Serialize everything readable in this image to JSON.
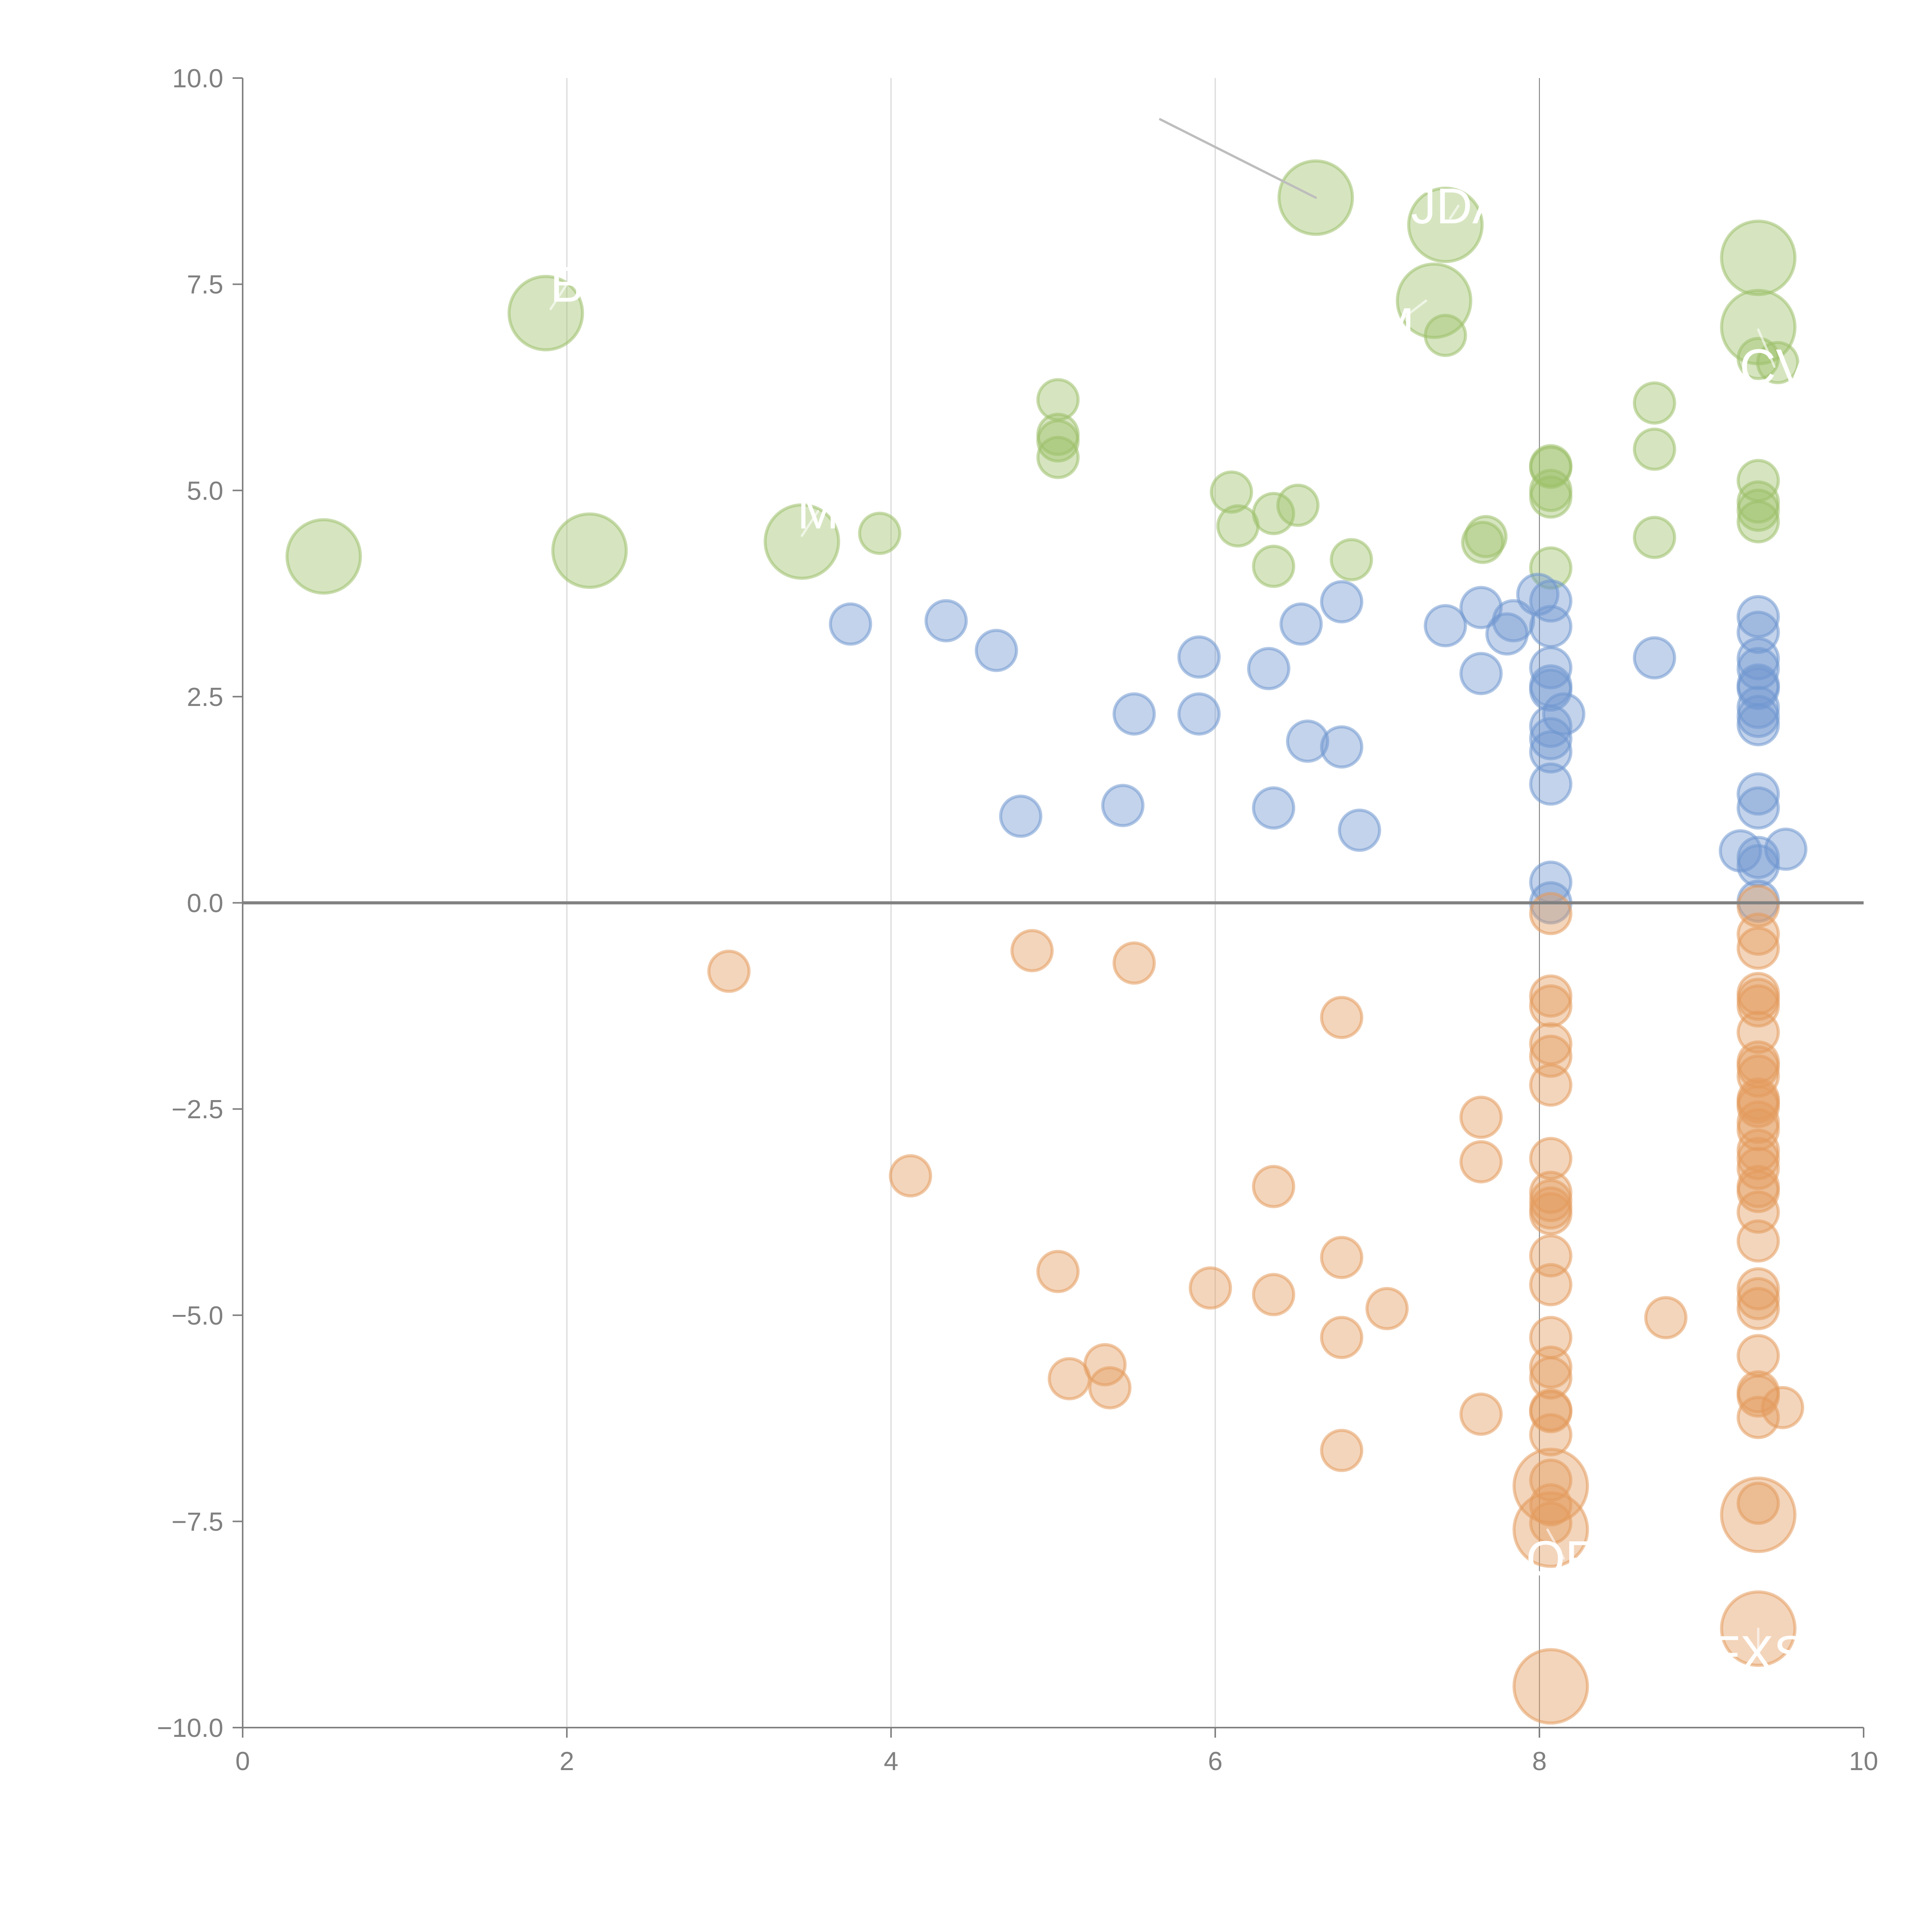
{
  "chart_data": {
    "type": "scatter",
    "title": "",
    "xlabel": "",
    "ylabel": "",
    "xlim": [
      0,
      10
    ],
    "ylim": [
      -10,
      10
    ],
    "x_ticks": [
      "0",
      "2",
      "4",
      "6",
      "8",
      "10"
    ],
    "y_ticks": [
      "10.0",
      "7.5",
      "5.0",
      "2.5",
      "0.0",
      "−2.5",
      "−5.0",
      "−7.5",
      "−10.0"
    ],
    "grid": "vertical",
    "zero_line": 0,
    "reference_vline": 8,
    "colors": {
      "up": "#9dc06a",
      "mid": "#6f97cf",
      "down": "#e39a5c"
    },
    "series": [
      {
        "name": "up",
        "points": [
          {
            "x": 0.5,
            "y": 4.2,
            "s": "L"
          },
          {
            "x": 1.87,
            "y": 7.15,
            "s": "L"
          },
          {
            "x": 2.14,
            "y": 4.27,
            "s": "L"
          },
          {
            "x": 3.45,
            "y": 4.38,
            "s": "L"
          },
          {
            "x": 3.93,
            "y": 4.48,
            "s": "S"
          },
          {
            "x": 5.03,
            "y": 6.1,
            "s": "S"
          },
          {
            "x": 5.03,
            "y": 5.68,
            "s": "S"
          },
          {
            "x": 5.03,
            "y": 5.6,
            "s": "S"
          },
          {
            "x": 5.03,
            "y": 5.4,
            "s": "S"
          },
          {
            "x": 6.1,
            "y": 4.98,
            "s": "S"
          },
          {
            "x": 6.14,
            "y": 4.57,
            "s": "S"
          },
          {
            "x": 6.36,
            "y": 4.72,
            "s": "S"
          },
          {
            "x": 6.36,
            "y": 4.08,
            "s": "S"
          },
          {
            "x": 6.51,
            "y": 4.82,
            "s": "S"
          },
          {
            "x": 6.62,
            "y": 8.55,
            "s": "L"
          },
          {
            "x": 6.84,
            "y": 4.16,
            "s": "S"
          },
          {
            "x": 7.35,
            "y": 7.3,
            "s": "L"
          },
          {
            "x": 7.42,
            "y": 8.22,
            "s": "L"
          },
          {
            "x": 7.42,
            "y": 6.88,
            "s": "S"
          },
          {
            "x": 7.65,
            "y": 4.37,
            "s": "S"
          },
          {
            "x": 7.67,
            "y": 4.44,
            "s": "S"
          },
          {
            "x": 8.07,
            "y": 5.3,
            "s": "S"
          },
          {
            "x": 8.07,
            "y": 5.28,
            "s": "S"
          },
          {
            "x": 8.07,
            "y": 5.0,
            "s": "S"
          },
          {
            "x": 8.07,
            "y": 4.92,
            "s": "S"
          },
          {
            "x": 8.07,
            "y": 4.06,
            "s": "S"
          },
          {
            "x": 8.71,
            "y": 6.06,
            "s": "S"
          },
          {
            "x": 8.71,
            "y": 5.5,
            "s": "S"
          },
          {
            "x": 8.71,
            "y": 4.43,
            "s": "S"
          },
          {
            "x": 9.35,
            "y": 7.82,
            "s": "L"
          },
          {
            "x": 9.35,
            "y": 6.98,
            "s": "L"
          },
          {
            "x": 9.35,
            "y": 6.6,
            "s": "S"
          },
          {
            "x": 9.47,
            "y": 6.55,
            "s": "S"
          },
          {
            "x": 9.35,
            "y": 5.12,
            "s": "S"
          },
          {
            "x": 9.35,
            "y": 4.86,
            "s": "S"
          },
          {
            "x": 9.35,
            "y": 4.76,
            "s": "S"
          },
          {
            "x": 9.35,
            "y": 4.62,
            "s": "S"
          }
        ]
      },
      {
        "name": "mid",
        "points": [
          {
            "x": 3.75,
            "y": 3.38
          },
          {
            "x": 4.34,
            "y": 3.42
          },
          {
            "x": 4.65,
            "y": 3.06
          },
          {
            "x": 4.8,
            "y": 1.05
          },
          {
            "x": 5.43,
            "y": 1.18
          },
          {
            "x": 5.5,
            "y": 2.29
          },
          {
            "x": 5.9,
            "y": 2.29
          },
          {
            "x": 5.9,
            "y": 2.98
          },
          {
            "x": 6.33,
            "y": 2.84
          },
          {
            "x": 6.36,
            "y": 1.15
          },
          {
            "x": 6.53,
            "y": 3.38
          },
          {
            "x": 6.57,
            "y": 1.96
          },
          {
            "x": 6.78,
            "y": 3.65
          },
          {
            "x": 6.78,
            "y": 1.89
          },
          {
            "x": 6.89,
            "y": 0.88
          },
          {
            "x": 7.42,
            "y": 3.36
          },
          {
            "x": 7.64,
            "y": 3.58
          },
          {
            "x": 7.64,
            "y": 2.78
          },
          {
            "x": 7.8,
            "y": 3.26
          },
          {
            "x": 7.84,
            "y": 3.42
          },
          {
            "x": 7.99,
            "y": 3.74
          },
          {
            "x": 8.07,
            "y": 3.66
          },
          {
            "x": 8.07,
            "y": 3.35
          },
          {
            "x": 8.07,
            "y": 2.85
          },
          {
            "x": 8.07,
            "y": 2.63
          },
          {
            "x": 8.07,
            "y": 2.58
          },
          {
            "x": 8.15,
            "y": 2.29
          },
          {
            "x": 8.07,
            "y": 2.14
          },
          {
            "x": 8.07,
            "y": 1.99
          },
          {
            "x": 8.07,
            "y": 1.83
          },
          {
            "x": 8.07,
            "y": 1.44
          },
          {
            "x": 8.07,
            "y": 0.25
          },
          {
            "x": 8.07,
            "y": 0.0
          },
          {
            "x": 8.71,
            "y": 2.97
          },
          {
            "x": 9.35,
            "y": 3.47
          },
          {
            "x": 9.35,
            "y": 3.28
          },
          {
            "x": 9.35,
            "y": 2.96
          },
          {
            "x": 9.35,
            "y": 2.84
          },
          {
            "x": 9.35,
            "y": 2.64
          },
          {
            "x": 9.35,
            "y": 2.6
          },
          {
            "x": 9.35,
            "y": 2.37
          },
          {
            "x": 9.35,
            "y": 2.26
          },
          {
            "x": 9.35,
            "y": 2.16
          },
          {
            "x": 9.35,
            "y": 1.32
          },
          {
            "x": 9.35,
            "y": 1.15
          },
          {
            "x": 9.24,
            "y": 0.63
          },
          {
            "x": 9.52,
            "y": 0.65
          },
          {
            "x": 9.35,
            "y": 0.55
          },
          {
            "x": 9.35,
            "y": 0.45
          },
          {
            "x": 9.35,
            "y": 0.02
          }
        ]
      },
      {
        "name": "down",
        "points": [
          {
            "x": 3.0,
            "y": -0.83,
            "s": "S"
          },
          {
            "x": 4.12,
            "y": -3.31,
            "s": "S"
          },
          {
            "x": 4.87,
            "y": -0.58,
            "s": "S"
          },
          {
            "x": 5.03,
            "y": -4.47,
            "s": "S"
          },
          {
            "x": 5.1,
            "y": -5.77,
            "s": "S"
          },
          {
            "x": 5.32,
            "y": -5.6,
            "s": "S"
          },
          {
            "x": 5.35,
            "y": -5.88,
            "s": "S"
          },
          {
            "x": 5.5,
            "y": -0.73,
            "s": "S"
          },
          {
            "x": 5.97,
            "y": -4.67,
            "s": "S"
          },
          {
            "x": 6.36,
            "y": -3.44,
            "s": "S"
          },
          {
            "x": 6.36,
            "y": -4.75,
            "s": "S"
          },
          {
            "x": 6.78,
            "y": -1.39,
            "s": "S"
          },
          {
            "x": 6.78,
            "y": -4.3,
            "s": "S"
          },
          {
            "x": 6.78,
            "y": -5.27,
            "s": "S"
          },
          {
            "x": 6.78,
            "y": -6.64,
            "s": "S"
          },
          {
            "x": 7.06,
            "y": -4.92,
            "s": "S"
          },
          {
            "x": 7.64,
            "y": -2.6,
            "s": "S"
          },
          {
            "x": 7.64,
            "y": -3.14,
            "s": "S"
          },
          {
            "x": 7.64,
            "y": -6.2,
            "s": "S"
          },
          {
            "x": 8.07,
            "y": -0.13,
            "s": "S"
          },
          {
            "x": 8.07,
            "y": -1.13,
            "s": "S"
          },
          {
            "x": 8.07,
            "y": -1.25,
            "s": "S"
          },
          {
            "x": 8.07,
            "y": -1.71,
            "s": "S"
          },
          {
            "x": 8.07,
            "y": -1.86,
            "s": "S"
          },
          {
            "x": 8.07,
            "y": -2.21,
            "s": "S"
          },
          {
            "x": 8.07,
            "y": -3.1,
            "s": "S"
          },
          {
            "x": 8.07,
            "y": -3.51,
            "s": "S"
          },
          {
            "x": 8.07,
            "y": -3.61,
            "s": "S"
          },
          {
            "x": 8.07,
            "y": -3.7,
            "s": "S"
          },
          {
            "x": 8.07,
            "y": -3.77,
            "s": "S"
          },
          {
            "x": 8.07,
            "y": -4.28,
            "s": "S"
          },
          {
            "x": 8.07,
            "y": -4.63,
            "s": "S"
          },
          {
            "x": 8.07,
            "y": -5.27,
            "s": "S"
          },
          {
            "x": 8.07,
            "y": -5.63,
            "s": "S"
          },
          {
            "x": 8.07,
            "y": -5.76,
            "s": "S"
          },
          {
            "x": 8.07,
            "y": -6.15,
            "s": "S"
          },
          {
            "x": 8.07,
            "y": -6.17,
            "s": "S"
          },
          {
            "x": 8.07,
            "y": -6.45,
            "s": "S"
          },
          {
            "x": 8.07,
            "y": -7.0,
            "s": "S"
          },
          {
            "x": 8.07,
            "y": -7.07,
            "s": "L"
          },
          {
            "x": 8.07,
            "y": -7.3,
            "s": "S"
          },
          {
            "x": 8.07,
            "y": -7.52,
            "s": "S"
          },
          {
            "x": 8.07,
            "y": -7.6,
            "s": "L"
          },
          {
            "x": 8.07,
            "y": -9.5,
            "s": "L"
          },
          {
            "x": 8.78,
            "y": -5.03,
            "s": "S"
          },
          {
            "x": 9.35,
            "y": -0.04,
            "s": "S"
          },
          {
            "x": 9.35,
            "y": -0.38,
            "s": "S"
          },
          {
            "x": 9.35,
            "y": -0.55,
            "s": "S"
          },
          {
            "x": 9.35,
            "y": -1.1,
            "s": "S"
          },
          {
            "x": 9.35,
            "y": -1.17,
            "s": "S"
          },
          {
            "x": 9.35,
            "y": -1.25,
            "s": "S"
          },
          {
            "x": 9.35,
            "y": -1.57,
            "s": "S"
          },
          {
            "x": 9.35,
            "y": -1.93,
            "s": "S"
          },
          {
            "x": 9.35,
            "y": -1.99,
            "s": "S"
          },
          {
            "x": 9.35,
            "y": -2.1,
            "s": "S"
          },
          {
            "x": 9.35,
            "y": -2.38,
            "s": "S"
          },
          {
            "x": 9.35,
            "y": -2.42,
            "s": "S"
          },
          {
            "x": 9.35,
            "y": -2.47,
            "s": "S"
          },
          {
            "x": 9.35,
            "y": -2.66,
            "s": "S"
          },
          {
            "x": 9.35,
            "y": -2.75,
            "s": "S"
          },
          {
            "x": 9.35,
            "y": -3.0,
            "s": "S"
          },
          {
            "x": 9.35,
            "y": -3.1,
            "s": "S"
          },
          {
            "x": 9.35,
            "y": -3.22,
            "s": "S"
          },
          {
            "x": 9.35,
            "y": -3.44,
            "s": "S"
          },
          {
            "x": 9.35,
            "y": -3.5,
            "s": "S"
          },
          {
            "x": 9.35,
            "y": -3.75,
            "s": "S"
          },
          {
            "x": 9.35,
            "y": -4.1,
            "s": "S"
          },
          {
            "x": 9.35,
            "y": -4.68,
            "s": "S"
          },
          {
            "x": 9.35,
            "y": -4.8,
            "s": "S"
          },
          {
            "x": 9.35,
            "y": -4.92,
            "s": "S"
          },
          {
            "x": 9.35,
            "y": -5.49,
            "s": "S"
          },
          {
            "x": 9.35,
            "y": -5.93,
            "s": "S"
          },
          {
            "x": 9.35,
            "y": -5.98,
            "s": "S"
          },
          {
            "x": 9.35,
            "y": -6.24,
            "s": "S"
          },
          {
            "x": 9.5,
            "y": -6.12,
            "s": "S"
          },
          {
            "x": 9.35,
            "y": -7.28,
            "s": "S"
          },
          {
            "x": 9.35,
            "y": -7.42,
            "s": "L"
          },
          {
            "x": 9.35,
            "y": -8.8,
            "s": "L"
          }
        ]
      }
    ],
    "annotations": [
      {
        "text": "B",
        "x": 2.0,
        "y": 7.5,
        "px": 1.9,
        "py": 7.2
      },
      {
        "text": "M",
        "x": 3.55,
        "y": 4.75,
        "px": 3.45,
        "py": 4.45
      },
      {
        "text": "JDA",
        "x": 7.5,
        "y": 8.45,
        "px": 7.45,
        "py": 8.3
      },
      {
        "text": "M",
        "x": 7.1,
        "y": 7.0,
        "px": 7.3,
        "py": 7.3
      },
      {
        "text": "CV",
        "x": 9.45,
        "y": 6.5,
        "px": 9.35,
        "py": 6.95
      },
      {
        "text": "OR",
        "x": 8.15,
        "y": -7.95,
        "px": 8.05,
        "py": -7.6
      },
      {
        "text": "FXS",
        "x": 9.35,
        "y": -9.1,
        "px": 9.35,
        "py": -8.8
      }
    ],
    "grey_leader": {
      "x1": 5.66,
      "y1": 9.5,
      "x2": 6.62,
      "y2": 8.55
    }
  }
}
